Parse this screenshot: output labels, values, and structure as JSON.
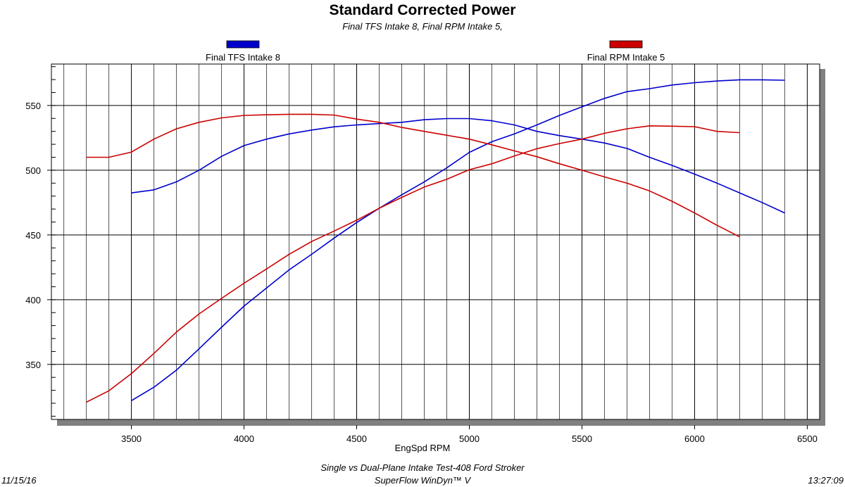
{
  "chart_data": {
    "type": "line",
    "title": "Standard Corrected Power",
    "subtitle": "Final TFS Intake 8, Final RPM Intake 5,",
    "xlabel": "EngSpd RPM",
    "ylabel": "",
    "xlim": [
      3145,
      6555
    ],
    "ylim": [
      307.5,
      582
    ],
    "x_ticks": [
      3500,
      4000,
      4500,
      5000,
      5500,
      6000,
      6500
    ],
    "y_ticks": [
      350,
      400,
      450,
      500,
      550
    ],
    "grid": true,
    "legend_placement": "top",
    "series": [
      {
        "name": "Final TFS Intake 8",
        "color": "#0000cc",
        "curves": [
          {
            "x": [
              3500,
              3600,
              3700,
              3800,
              3900,
              4000,
              4100,
              4200,
              4300,
              4400,
              4500,
              4600,
              4700,
              4800,
              4900,
              5000,
              5100,
              5200,
              5300,
              5400,
              5500,
              5600,
              5700,
              5800,
              5900,
              6000,
              6100,
              6200,
              6300,
              6400
            ],
            "y": [
              322,
              332.4,
              345.6,
              362,
              378.7,
              395,
              409,
              423,
              435,
              447.6,
              459.6,
              470.6,
              481,
              491,
              501.8,
              513.8,
              522,
              528,
              535,
              542.3,
              549,
              555.5,
              560.7,
              563,
              565.8,
              567.6,
              568.9,
              569.8,
              569.8,
              569.5
            ]
          },
          {
            "x": [
              3500,
              3600,
              3700,
              3800,
              3900,
              4000,
              4100,
              4200,
              4300,
              4400,
              4500,
              4600,
              4700,
              4800,
              4900,
              5000,
              5100,
              5200,
              5300,
              5400,
              5500,
              5600,
              5700,
              5800,
              5900,
              6000,
              6100,
              6200,
              6300,
              6400
            ],
            "y": [
              482.5,
              484.8,
              491,
              500,
              510.7,
              519,
              524,
              528,
              531,
              533.5,
              535,
              536,
              537,
              539,
              539.9,
              539.9,
              538.2,
              535,
              530,
              526.7,
              524,
              521,
              516.8,
              510,
              503.7,
              497,
              490,
              482.5,
              475,
              467
            ]
          }
        ]
      },
      {
        "name": "Final RPM Intake 5",
        "color": "#cc0000",
        "curves": [
          {
            "x": [
              3300,
              3400,
              3500,
              3600,
              3700,
              3800,
              3900,
              4000,
              4100,
              4200,
              4300,
              4400,
              4500,
              4600,
              4700,
              4800,
              4900,
              5000,
              5100,
              5200,
              5300,
              5400,
              5500,
              5600,
              5700,
              5800,
              5900,
              6000,
              6100,
              6200
            ],
            "y": [
              320.8,
              329.6,
              342.9,
              358.5,
              375,
              389,
              401,
              412.7,
              423.7,
              435,
              444.9,
              453,
              461.4,
              470.6,
              479,
              487,
              493,
              500.4,
              505,
              511,
              516.6,
              520.6,
              524,
              528.5,
              532,
              534.3,
              534,
              533.6,
              530,
              529
            ]
          },
          {
            "x": [
              3300,
              3400,
              3500,
              3600,
              3700,
              3800,
              3900,
              4000,
              4100,
              4200,
              4300,
              4400,
              4500,
              4600,
              4700,
              4800,
              4900,
              5000,
              5100,
              5200,
              5300,
              5400,
              5500,
              5600,
              5700,
              5800,
              5900,
              6000,
              6100,
              6200
            ],
            "y": [
              510,
              510,
              514,
              524,
              532,
              537,
              540.4,
              542.3,
              542.8,
              543.2,
              543.2,
              542.6,
              539.5,
              537,
              533,
              530,
              527,
              524,
              519.6,
              514.9,
              510.4,
              505,
              500,
              494.8,
              490,
              484,
              476,
              467,
              457.4,
              448.5
            ]
          }
        ]
      }
    ]
  },
  "footer": {
    "description": "Single vs Dual-Plane Intake Test-408 Ford Stroker",
    "software": "SuperFlow WinDyn™ V",
    "date": "11/15/16",
    "time": "13:27:09"
  }
}
